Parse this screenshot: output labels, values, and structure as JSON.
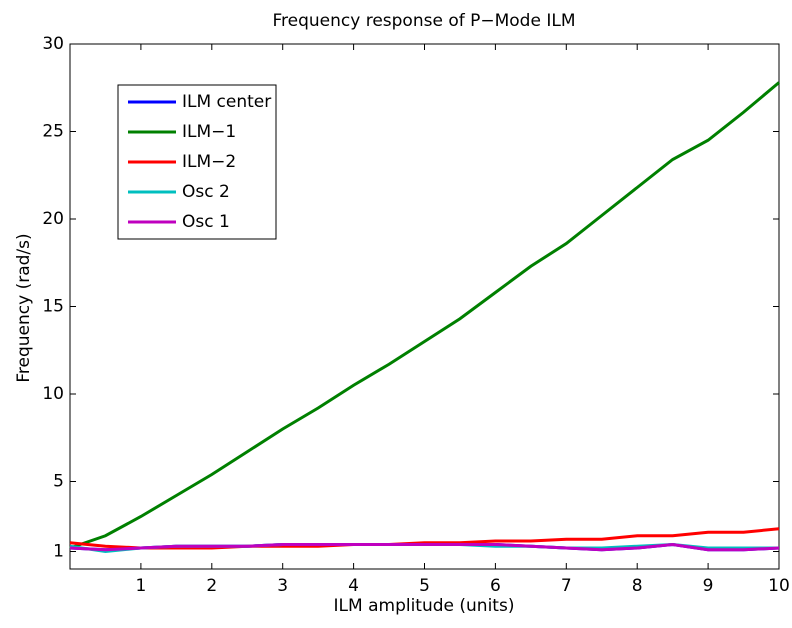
{
  "chart_data": {
    "type": "line",
    "title": "Frequency response of P−Mode ILM",
    "x_label": "ILM amplitude (units)",
    "y_label": "Frequency (rad/s)",
    "x": [
      0,
      0.5,
      1,
      1.5,
      2,
      2.5,
      3,
      3.5,
      4,
      4.5,
      5,
      5.5,
      6,
      6.5,
      7,
      7.5,
      8,
      8.5,
      9,
      9.5,
      10
    ],
    "series": [
      {
        "name": "ILM center",
        "color": "#0000ff",
        "values": [
          1.2,
          1.1,
          1.2,
          1.3,
          1.3,
          1.3,
          1.4,
          1.4,
          1.4,
          1.4,
          1.4,
          1.4,
          1.4,
          1.3,
          1.2,
          1.1,
          1.2,
          1.4,
          1.1,
          1.1,
          1.2
        ]
      },
      {
        "name": "ILM−1",
        "color": "#008000",
        "values": [
          1.2,
          1.9,
          3.0,
          4.2,
          5.4,
          6.7,
          8.0,
          9.2,
          10.5,
          11.7,
          13.0,
          14.3,
          15.8,
          17.3,
          18.6,
          20.2,
          21.8,
          23.4,
          24.5,
          26.1,
          27.8
        ]
      },
      {
        "name": "ILM−2",
        "color": "#ff0000",
        "values": [
          1.5,
          1.3,
          1.2,
          1.2,
          1.2,
          1.3,
          1.3,
          1.3,
          1.4,
          1.4,
          1.5,
          1.5,
          1.6,
          1.6,
          1.7,
          1.7,
          1.9,
          1.9,
          2.1,
          2.1,
          2.3
        ]
      },
      {
        "name": "Osc 2",
        "color": "#00bfbf",
        "values": [
          1.3,
          1.0,
          1.2,
          1.3,
          1.3,
          1.3,
          1.4,
          1.4,
          1.4,
          1.4,
          1.4,
          1.4,
          1.3,
          1.3,
          1.2,
          1.2,
          1.3,
          1.4,
          1.2,
          1.2,
          1.2
        ]
      },
      {
        "name": "Osc 1",
        "color": "#bf00bf",
        "values": [
          1.2,
          1.1,
          1.2,
          1.3,
          1.3,
          1.3,
          1.4,
          1.4,
          1.4,
          1.4,
          1.4,
          1.4,
          1.4,
          1.3,
          1.2,
          1.1,
          1.2,
          1.4,
          1.1,
          1.1,
          1.2
        ]
      }
    ],
    "xlim": [
      0,
      10
    ],
    "xticks": [
      1,
      2,
      3,
      4,
      5,
      6,
      7,
      8,
      9,
      10
    ],
    "ylim": [
      0,
      30
    ],
    "yticks": [
      1,
      5,
      10,
      15,
      20,
      25,
      30
    ],
    "grid": false,
    "legend": "upper left"
  }
}
